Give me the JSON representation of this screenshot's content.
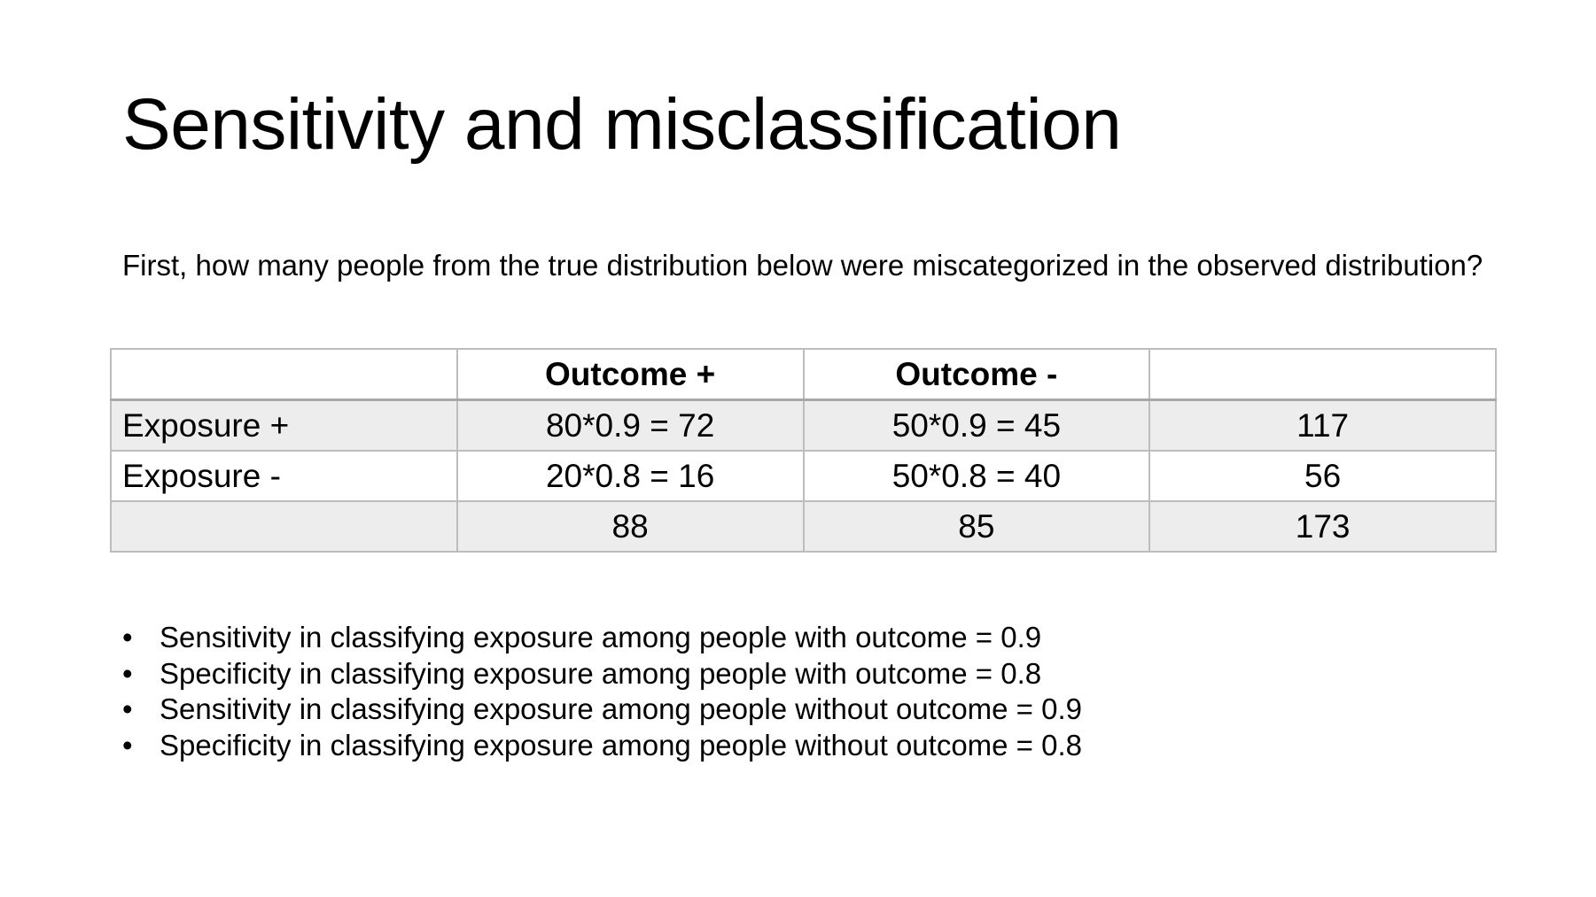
{
  "slide": {
    "title": "Sensitivity and misclassification",
    "question": "First, how many people from the true distribution below were miscategorized in the observed distribution?"
  },
  "table": {
    "headers": [
      "",
      "Outcome +",
      "Outcome -",
      ""
    ],
    "rows": [
      [
        "Exposure +",
        "80*0.9 = 72",
        "50*0.9 = 45",
        "117"
      ],
      [
        "Exposure -",
        "20*0.8 = 16",
        "50*0.8 = 40",
        "56"
      ],
      [
        "",
        "88",
        "85",
        "173"
      ]
    ]
  },
  "bullets": {
    "marker": "•",
    "items": [
      "Sensitivity in classifying exposure among people with outcome = 0.9",
      "Specificity in classifying exposure among people with outcome = 0.8",
      "Sensitivity in classifying exposure among people without outcome = 0.9",
      "Specificity in classifying exposure among people without outcome = 0.8"
    ]
  }
}
